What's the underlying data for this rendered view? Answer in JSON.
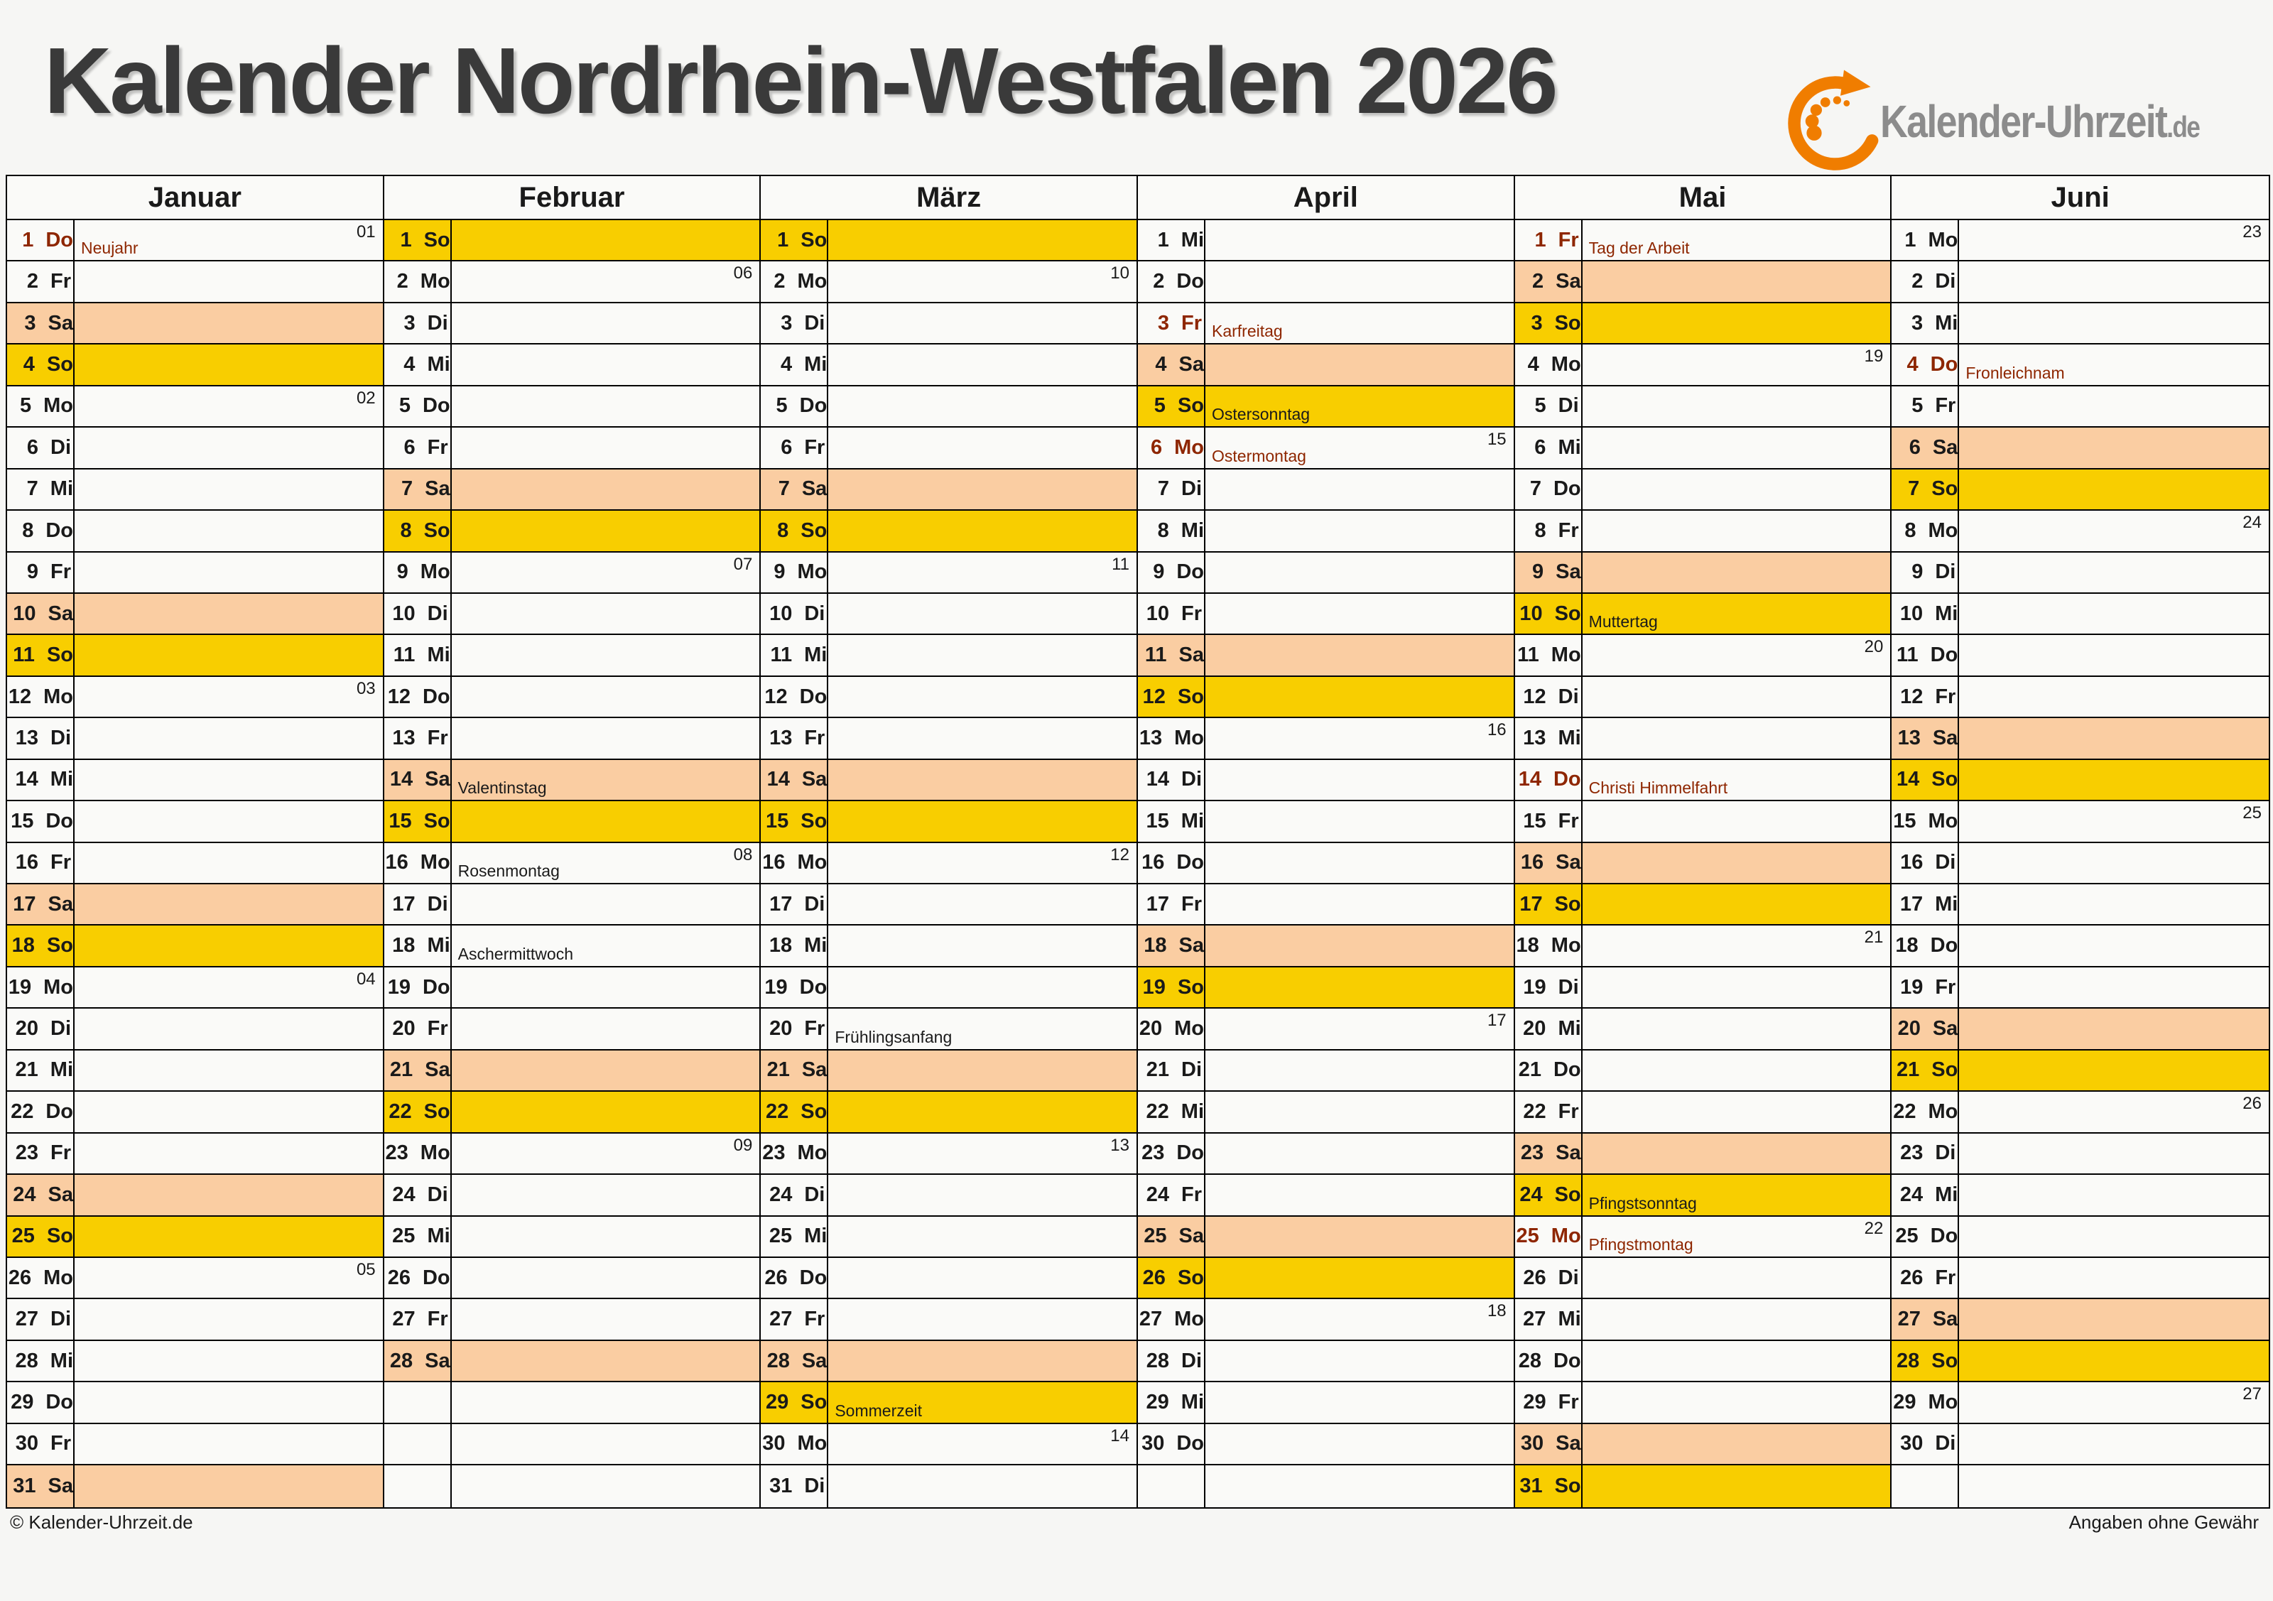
{
  "page": {
    "title": "Kalender Nordrhein-Westfalen 2026",
    "logo": {
      "text": "Kalender-Uhrzeit",
      "tld": ".de"
    },
    "footer_left": "© Kalender-Uhrzeit.de",
    "footer_right": "Angaben ohne Gewähr"
  },
  "colors": {
    "saturday_bg": "#facda2",
    "sunday_bg": "#f8ce00",
    "holiday_text": "#8e2600",
    "logo_orange": "#f07d00",
    "logo_gray": "#8c8c8c",
    "title_gray": "#3a3a3a"
  },
  "calendar": {
    "months": [
      {
        "name": "Januar",
        "days": [
          {
            "d": 1,
            "w": "Do",
            "week": "01",
            "label": "Neujahr",
            "red": true
          },
          {
            "d": 2,
            "w": "Fr"
          },
          {
            "d": 3,
            "w": "Sa"
          },
          {
            "d": 4,
            "w": "So"
          },
          {
            "d": 5,
            "w": "Mo",
            "week": "02"
          },
          {
            "d": 6,
            "w": "Di"
          },
          {
            "d": 7,
            "w": "Mi"
          },
          {
            "d": 8,
            "w": "Do"
          },
          {
            "d": 9,
            "w": "Fr"
          },
          {
            "d": 10,
            "w": "Sa"
          },
          {
            "d": 11,
            "w": "So"
          },
          {
            "d": 12,
            "w": "Mo",
            "week": "03"
          },
          {
            "d": 13,
            "w": "Di"
          },
          {
            "d": 14,
            "w": "Mi"
          },
          {
            "d": 15,
            "w": "Do"
          },
          {
            "d": 16,
            "w": "Fr"
          },
          {
            "d": 17,
            "w": "Sa"
          },
          {
            "d": 18,
            "w": "So"
          },
          {
            "d": 19,
            "w": "Mo",
            "week": "04"
          },
          {
            "d": 20,
            "w": "Di"
          },
          {
            "d": 21,
            "w": "Mi"
          },
          {
            "d": 22,
            "w": "Do"
          },
          {
            "d": 23,
            "w": "Fr"
          },
          {
            "d": 24,
            "w": "Sa"
          },
          {
            "d": 25,
            "w": "So"
          },
          {
            "d": 26,
            "w": "Mo",
            "week": "05"
          },
          {
            "d": 27,
            "w": "Di"
          },
          {
            "d": 28,
            "w": "Mi"
          },
          {
            "d": 29,
            "w": "Do"
          },
          {
            "d": 30,
            "w": "Fr"
          },
          {
            "d": 31,
            "w": "Sa"
          }
        ]
      },
      {
        "name": "Februar",
        "days": [
          {
            "d": 1,
            "w": "So"
          },
          {
            "d": 2,
            "w": "Mo",
            "week": "06"
          },
          {
            "d": 3,
            "w": "Di"
          },
          {
            "d": 4,
            "w": "Mi"
          },
          {
            "d": 5,
            "w": "Do"
          },
          {
            "d": 6,
            "w": "Fr"
          },
          {
            "d": 7,
            "w": "Sa"
          },
          {
            "d": 8,
            "w": "So"
          },
          {
            "d": 9,
            "w": "Mo",
            "week": "07"
          },
          {
            "d": 10,
            "w": "Di"
          },
          {
            "d": 11,
            "w": "Mi"
          },
          {
            "d": 12,
            "w": "Do"
          },
          {
            "d": 13,
            "w": "Fr"
          },
          {
            "d": 14,
            "w": "Sa",
            "label": "Valentinstag"
          },
          {
            "d": 15,
            "w": "So"
          },
          {
            "d": 16,
            "w": "Mo",
            "week": "08",
            "label": "Rosenmontag"
          },
          {
            "d": 17,
            "w": "Di"
          },
          {
            "d": 18,
            "w": "Mi",
            "label": "Aschermittwoch"
          },
          {
            "d": 19,
            "w": "Do"
          },
          {
            "d": 20,
            "w": "Fr"
          },
          {
            "d": 21,
            "w": "Sa"
          },
          {
            "d": 22,
            "w": "So"
          },
          {
            "d": 23,
            "w": "Mo",
            "week": "09"
          },
          {
            "d": 24,
            "w": "Di"
          },
          {
            "d": 25,
            "w": "Mi"
          },
          {
            "d": 26,
            "w": "Do"
          },
          {
            "d": 27,
            "w": "Fr"
          },
          {
            "d": 28,
            "w": "Sa"
          }
        ]
      },
      {
        "name": "März",
        "days": [
          {
            "d": 1,
            "w": "So"
          },
          {
            "d": 2,
            "w": "Mo",
            "week": "10"
          },
          {
            "d": 3,
            "w": "Di"
          },
          {
            "d": 4,
            "w": "Mi"
          },
          {
            "d": 5,
            "w": "Do"
          },
          {
            "d": 6,
            "w": "Fr"
          },
          {
            "d": 7,
            "w": "Sa"
          },
          {
            "d": 8,
            "w": "So"
          },
          {
            "d": 9,
            "w": "Mo",
            "week": "11"
          },
          {
            "d": 10,
            "w": "Di"
          },
          {
            "d": 11,
            "w": "Mi"
          },
          {
            "d": 12,
            "w": "Do"
          },
          {
            "d": 13,
            "w": "Fr"
          },
          {
            "d": 14,
            "w": "Sa"
          },
          {
            "d": 15,
            "w": "So"
          },
          {
            "d": 16,
            "w": "Mo",
            "week": "12"
          },
          {
            "d": 17,
            "w": "Di"
          },
          {
            "d": 18,
            "w": "Mi"
          },
          {
            "d": 19,
            "w": "Do"
          },
          {
            "d": 20,
            "w": "Fr",
            "label": "Frühlingsanfang"
          },
          {
            "d": 21,
            "w": "Sa"
          },
          {
            "d": 22,
            "w": "So"
          },
          {
            "d": 23,
            "w": "Mo",
            "week": "13"
          },
          {
            "d": 24,
            "w": "Di"
          },
          {
            "d": 25,
            "w": "Mi"
          },
          {
            "d": 26,
            "w": "Do"
          },
          {
            "d": 27,
            "w": "Fr"
          },
          {
            "d": 28,
            "w": "Sa"
          },
          {
            "d": 29,
            "w": "So",
            "label": "Sommerzeit"
          },
          {
            "d": 30,
            "w": "Mo",
            "week": "14"
          },
          {
            "d": 31,
            "w": "Di"
          }
        ]
      },
      {
        "name": "April",
        "days": [
          {
            "d": 1,
            "w": "Mi"
          },
          {
            "d": 2,
            "w": "Do"
          },
          {
            "d": 3,
            "w": "Fr",
            "label": "Karfreitag",
            "red": true
          },
          {
            "d": 4,
            "w": "Sa"
          },
          {
            "d": 5,
            "w": "So",
            "label": "Ostersonntag"
          },
          {
            "d": 6,
            "w": "Mo",
            "week": "15",
            "label": "Ostermontag",
            "red": true
          },
          {
            "d": 7,
            "w": "Di"
          },
          {
            "d": 8,
            "w": "Mi"
          },
          {
            "d": 9,
            "w": "Do"
          },
          {
            "d": 10,
            "w": "Fr"
          },
          {
            "d": 11,
            "w": "Sa"
          },
          {
            "d": 12,
            "w": "So"
          },
          {
            "d": 13,
            "w": "Mo",
            "week": "16"
          },
          {
            "d": 14,
            "w": "Di"
          },
          {
            "d": 15,
            "w": "Mi"
          },
          {
            "d": 16,
            "w": "Do"
          },
          {
            "d": 17,
            "w": "Fr"
          },
          {
            "d": 18,
            "w": "Sa"
          },
          {
            "d": 19,
            "w": "So"
          },
          {
            "d": 20,
            "w": "Mo",
            "week": "17"
          },
          {
            "d": 21,
            "w": "Di"
          },
          {
            "d": 22,
            "w": "Mi"
          },
          {
            "d": 23,
            "w": "Do"
          },
          {
            "d": 24,
            "w": "Fr"
          },
          {
            "d": 25,
            "w": "Sa"
          },
          {
            "d": 26,
            "w": "So"
          },
          {
            "d": 27,
            "w": "Mo",
            "week": "18"
          },
          {
            "d": 28,
            "w": "Di"
          },
          {
            "d": 29,
            "w": "Mi"
          },
          {
            "d": 30,
            "w": "Do"
          }
        ]
      },
      {
        "name": "Mai",
        "days": [
          {
            "d": 1,
            "w": "Fr",
            "label": "Tag der Arbeit",
            "red": true
          },
          {
            "d": 2,
            "w": "Sa"
          },
          {
            "d": 3,
            "w": "So"
          },
          {
            "d": 4,
            "w": "Mo",
            "week": "19"
          },
          {
            "d": 5,
            "w": "Di"
          },
          {
            "d": 6,
            "w": "Mi"
          },
          {
            "d": 7,
            "w": "Do"
          },
          {
            "d": 8,
            "w": "Fr"
          },
          {
            "d": 9,
            "w": "Sa"
          },
          {
            "d": 10,
            "w": "So",
            "label": "Muttertag"
          },
          {
            "d": 11,
            "w": "Mo",
            "week": "20"
          },
          {
            "d": 12,
            "w": "Di"
          },
          {
            "d": 13,
            "w": "Mi"
          },
          {
            "d": 14,
            "w": "Do",
            "label": "Christi Himmelfahrt",
            "red": true
          },
          {
            "d": 15,
            "w": "Fr"
          },
          {
            "d": 16,
            "w": "Sa"
          },
          {
            "d": 17,
            "w": "So"
          },
          {
            "d": 18,
            "w": "Mo",
            "week": "21"
          },
          {
            "d": 19,
            "w": "Di"
          },
          {
            "d": 20,
            "w": "Mi"
          },
          {
            "d": 21,
            "w": "Do"
          },
          {
            "d": 22,
            "w": "Fr"
          },
          {
            "d": 23,
            "w": "Sa"
          },
          {
            "d": 24,
            "w": "So",
            "label": "Pfingstsonntag"
          },
          {
            "d": 25,
            "w": "Mo",
            "week": "22",
            "label": "Pfingstmontag",
            "red": true
          },
          {
            "d": 26,
            "w": "Di"
          },
          {
            "d": 27,
            "w": "Mi"
          },
          {
            "d": 28,
            "w": "Do"
          },
          {
            "d": 29,
            "w": "Fr"
          },
          {
            "d": 30,
            "w": "Sa"
          },
          {
            "d": 31,
            "w": "So"
          }
        ]
      },
      {
        "name": "Juni",
        "days": [
          {
            "d": 1,
            "w": "Mo",
            "week": "23"
          },
          {
            "d": 2,
            "w": "Di"
          },
          {
            "d": 3,
            "w": "Mi"
          },
          {
            "d": 4,
            "w": "Do",
            "label": "Fronleichnam",
            "red": true
          },
          {
            "d": 5,
            "w": "Fr"
          },
          {
            "d": 6,
            "w": "Sa"
          },
          {
            "d": 7,
            "w": "So"
          },
          {
            "d": 8,
            "w": "Mo",
            "week": "24"
          },
          {
            "d": 9,
            "w": "Di"
          },
          {
            "d": 10,
            "w": "Mi"
          },
          {
            "d": 11,
            "w": "Do"
          },
          {
            "d": 12,
            "w": "Fr"
          },
          {
            "d": 13,
            "w": "Sa"
          },
          {
            "d": 14,
            "w": "So"
          },
          {
            "d": 15,
            "w": "Mo",
            "week": "25"
          },
          {
            "d": 16,
            "w": "Di"
          },
          {
            "d": 17,
            "w": "Mi"
          },
          {
            "d": 18,
            "w": "Do"
          },
          {
            "d": 19,
            "w": "Fr"
          },
          {
            "d": 20,
            "w": "Sa"
          },
          {
            "d": 21,
            "w": "So"
          },
          {
            "d": 22,
            "w": "Mo",
            "week": "26"
          },
          {
            "d": 23,
            "w": "Di"
          },
          {
            "d": 24,
            "w": "Mi"
          },
          {
            "d": 25,
            "w": "Do"
          },
          {
            "d": 26,
            "w": "Fr"
          },
          {
            "d": 27,
            "w": "Sa"
          },
          {
            "d": 28,
            "w": "So"
          },
          {
            "d": 29,
            "w": "Mo",
            "week": "27"
          },
          {
            "d": 30,
            "w": "Di"
          }
        ]
      }
    ]
  }
}
